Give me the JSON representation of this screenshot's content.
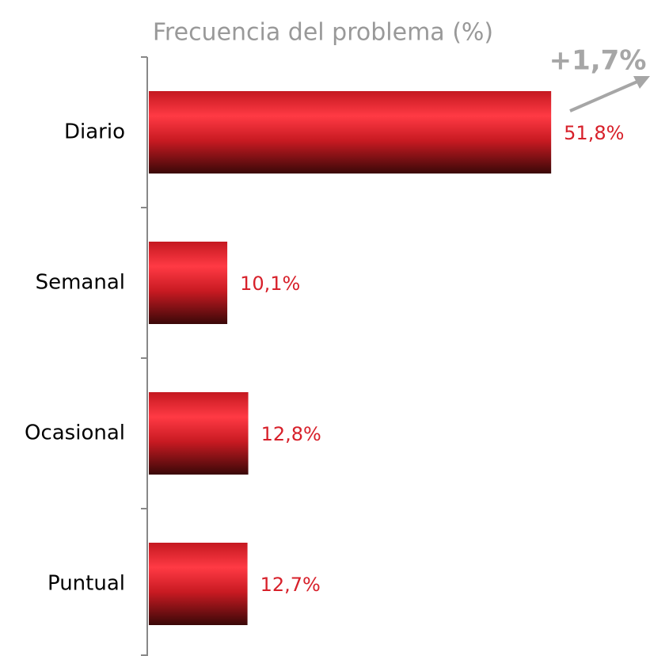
{
  "chart_data": {
    "type": "bar",
    "orientation": "horizontal",
    "title": "Frecuencia del problema (%)",
    "categories": [
      "Diario",
      "Semanal",
      "Ocasional",
      "Puntual"
    ],
    "values": [
      51.8,
      10.1,
      12.8,
      12.7
    ],
    "value_labels": [
      "51,8%",
      "10,1%",
      "12,8%",
      "12,7%"
    ],
    "color": "#e8202a",
    "annotation": "+1,7%"
  }
}
